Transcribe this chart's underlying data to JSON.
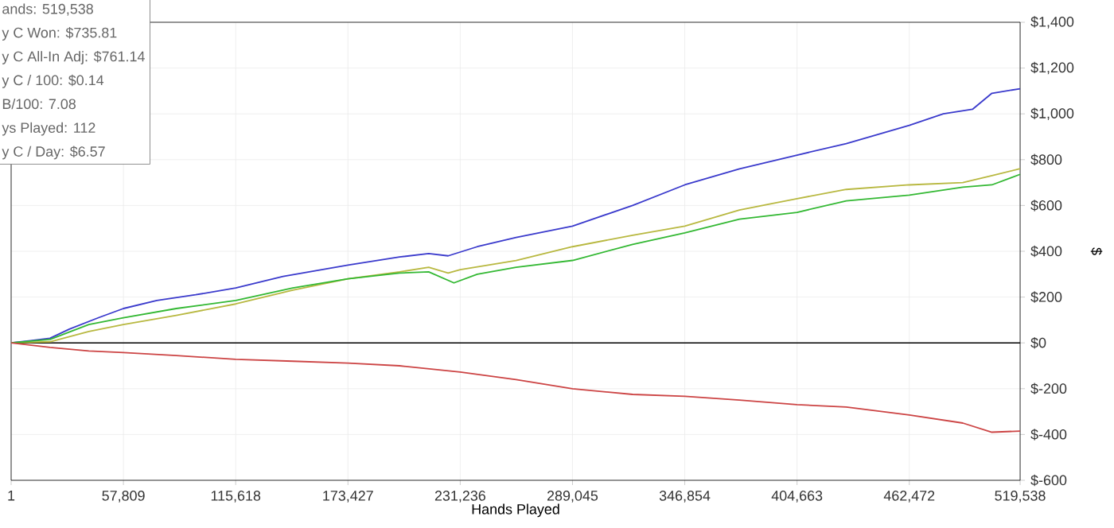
{
  "chart_data": {
    "type": "line",
    "xlabel": "Hands Played",
    "ylabel": "$",
    "annotations": [
      "ands: 519,538",
      "y C Won: $735.81",
      "y C All-In Adj: $761.14",
      "y C / 100: $0.14",
      "B/100: 7.08",
      "ys Played: 112",
      "y C / Day: $6.57"
    ],
    "xlim": [
      1,
      519538
    ],
    "xticks": [
      1,
      {
        "value": 57809,
        "label": "57,809"
      },
      {
        "value": 115618,
        "label": "115,618"
      },
      {
        "value": 173427,
        "label": "173,427"
      },
      {
        "value": 231236,
        "label": "231,236"
      },
      {
        "value": 289045,
        "label": "289,045"
      },
      {
        "value": 346854,
        "label": "346,854"
      },
      {
        "value": 404663,
        "label": "404,663"
      },
      {
        "value": 462472,
        "label": "462,472"
      },
      {
        "value": 519538,
        "label": "519,538"
      }
    ],
    "ylim": [
      -600,
      1400
    ],
    "yticks": [
      {
        "value": -600,
        "label": "$-600"
      },
      {
        "value": -400,
        "label": "$-400"
      },
      {
        "value": -200,
        "label": "$-200"
      },
      {
        "value": 0,
        "label": "$0"
      },
      {
        "value": 200,
        "label": "$200"
      },
      {
        "value": 400,
        "label": "$400"
      },
      {
        "value": 600,
        "label": "$600"
      },
      {
        "value": 800,
        "label": "$800"
      },
      {
        "value": 1000,
        "label": "$1,000"
      },
      {
        "value": 1200,
        "label": "$1,200"
      },
      {
        "value": 1400,
        "label": "$1,400"
      }
    ],
    "grid": true,
    "marker": "none",
    "line_style": "solid",
    "ref_lines": [
      {
        "axis": "y",
        "value": 0,
        "color": "#000000"
      }
    ],
    "series": [
      {
        "color": "#3a3acc",
        "x": [
          1,
          10000,
          20000,
          30000,
          45000,
          57809,
          75000,
          95000,
          115618,
          140000,
          173427,
          200000,
          215000,
          225000,
          240000,
          260000,
          289045,
          320000,
          346854,
          375000,
          404663,
          430000,
          462472,
          480000,
          495000,
          505000,
          519538
        ],
        "values": [
          0,
          10,
          20,
          60,
          110,
          150,
          185,
          210,
          240,
          290,
          340,
          375,
          390,
          380,
          420,
          460,
          510,
          600,
          690,
          760,
          820,
          870,
          950,
          1000,
          1020,
          1090,
          1110
        ]
      },
      {
        "color": "#b8b840",
        "x": [
          1,
          20000,
          40000,
          57809,
          85000,
          115618,
          145000,
          173427,
          200000,
          215000,
          225000,
          231236,
          260000,
          289045,
          320000,
          346854,
          375000,
          404663,
          430000,
          462472,
          490000,
          505000,
          519538
        ],
        "values": [
          0,
          5,
          50,
          80,
          120,
          170,
          230,
          280,
          310,
          330,
          305,
          320,
          360,
          420,
          470,
          510,
          580,
          630,
          670,
          690,
          700,
          730,
          761
        ]
      },
      {
        "color": "#33b833",
        "x": [
          1,
          20000,
          40000,
          57809,
          85000,
          115618,
          145000,
          173427,
          200000,
          215000,
          228000,
          240000,
          260000,
          289045,
          320000,
          346854,
          375000,
          404663,
          430000,
          462472,
          490000,
          505000,
          519538
        ],
        "values": [
          0,
          15,
          80,
          110,
          150,
          185,
          240,
          280,
          305,
          310,
          262,
          300,
          330,
          360,
          430,
          480,
          540,
          570,
          620,
          645,
          680,
          690,
          736
        ]
      },
      {
        "color": "#cc4444",
        "x": [
          1,
          20000,
          40000,
          57809,
          85000,
          115618,
          145000,
          173427,
          200000,
          231236,
          260000,
          289045,
          320000,
          346854,
          375000,
          404663,
          430000,
          462472,
          490000,
          505000,
          519538
        ],
        "values": [
          0,
          -20,
          -35,
          -42,
          -55,
          -72,
          -80,
          -88,
          -100,
          -127,
          -160,
          -200,
          -225,
          -233,
          -250,
          -270,
          -280,
          -315,
          -350,
          -390,
          -385
        ]
      }
    ]
  }
}
